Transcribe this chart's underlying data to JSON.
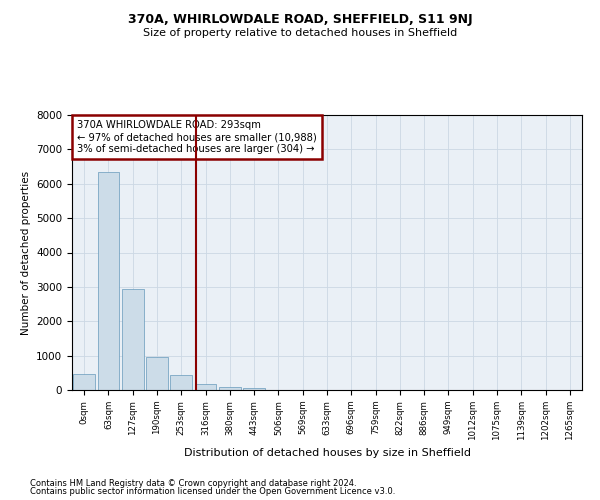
{
  "title1": "370A, WHIRLOWDALE ROAD, SHEFFIELD, S11 9NJ",
  "title2": "Size of property relative to detached houses in Sheffield",
  "xlabel": "Distribution of detached houses by size in Sheffield",
  "ylabel": "Number of detached properties",
  "categories": [
    "0sqm",
    "63sqm",
    "127sqm",
    "190sqm",
    "253sqm",
    "316sqm",
    "380sqm",
    "443sqm",
    "506sqm",
    "569sqm",
    "633sqm",
    "696sqm",
    "759sqm",
    "822sqm",
    "886sqm",
    "949sqm",
    "1012sqm",
    "1075sqm",
    "1139sqm",
    "1202sqm",
    "1265sqm"
  ],
  "values": [
    480,
    6350,
    2950,
    950,
    430,
    175,
    100,
    60,
    0,
    0,
    0,
    0,
    0,
    0,
    0,
    0,
    0,
    0,
    0,
    0,
    0
  ],
  "bar_color": "#ccdce8",
  "bar_edge_color": "#6699bb",
  "vline_x_idx": 4.62,
  "vline_color": "#8b0000",
  "annotation_text": "370A WHIRLOWDALE ROAD: 293sqm\n← 97% of detached houses are smaller (10,988)\n3% of semi-detached houses are larger (304) →",
  "annotation_box_color": "#8b0000",
  "ylim": [
    0,
    8000
  ],
  "yticks": [
    0,
    1000,
    2000,
    3000,
    4000,
    5000,
    6000,
    7000,
    8000
  ],
  "footer1": "Contains HM Land Registry data © Crown copyright and database right 2024.",
  "footer2": "Contains public sector information licensed under the Open Government Licence v3.0.",
  "grid_color": "#ccd8e4",
  "background_color": "#eaf0f6"
}
